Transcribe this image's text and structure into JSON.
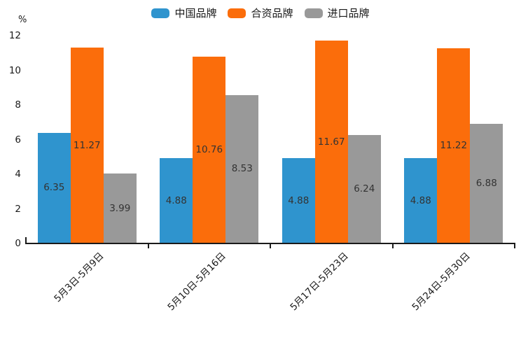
{
  "chart_data": {
    "type": "bar",
    "title": "",
    "ylabel": "%",
    "xlabel": "",
    "ylim": [
      0,
      12
    ],
    "yticks": [
      0,
      2,
      4,
      6,
      8,
      10,
      12
    ],
    "grid": false,
    "legend_position": "top",
    "value_labels": true,
    "value_label_decimals": 2,
    "categories": [
      "5月3日-5月9日",
      "5月10日-5月16日",
      "5月17日-5月23日",
      "5月24日-5月30日"
    ],
    "series": [
      {
        "name": "中国品牌",
        "color": "#2F94CE",
        "values": [
          6.35,
          4.88,
          4.88,
          4.88
        ]
      },
      {
        "name": "合资品牌",
        "color": "#FB6D0B",
        "values": [
          11.27,
          10.76,
          11.67,
          11.22
        ]
      },
      {
        "name": "进口品牌",
        "color": "#999999",
        "values": [
          3.99,
          8.53,
          6.24,
          6.88
        ]
      }
    ],
    "colors": {
      "axis": "#1a1a1a",
      "tick_label": "#1a1a1a",
      "value_label": "#333333",
      "background": "#ffffff"
    }
  }
}
